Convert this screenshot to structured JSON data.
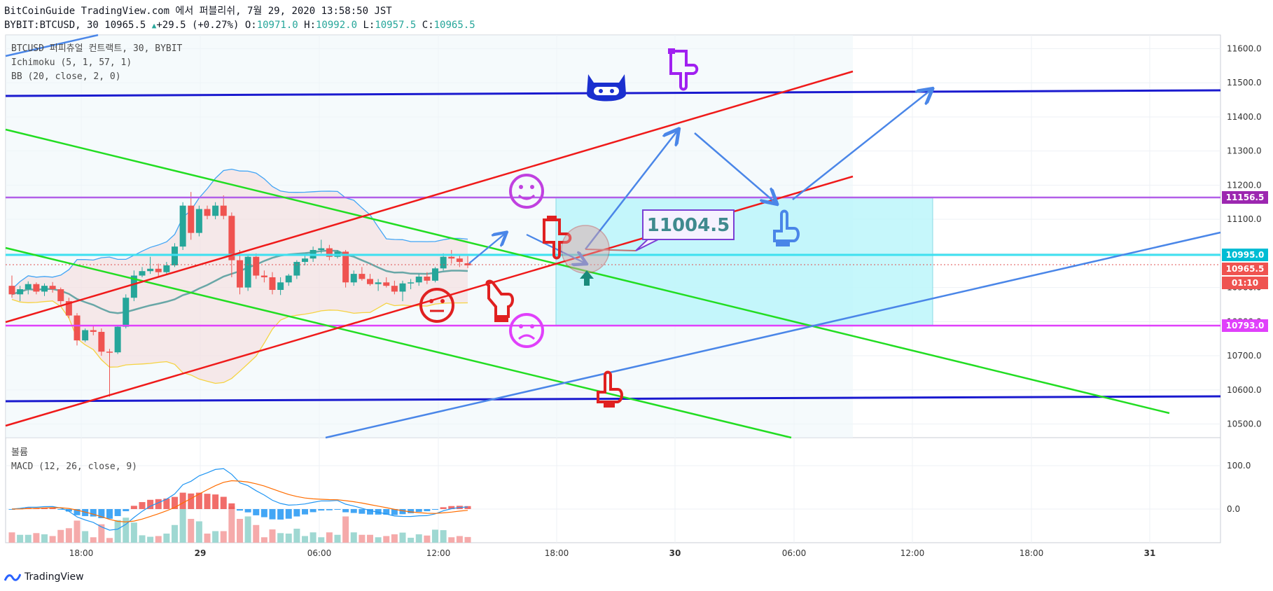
{
  "header": {
    "line1": "BitCoinGuide TradingView.com 에서 퍼블리쉬, 7월 29, 2020 13:58:50 JST",
    "symbol": "BYBIT:BTCUSD, 30",
    "last": "10965.5",
    "change": "+29.5 (+0.27%)",
    "o_label": "O:",
    "o": "10971.0",
    "h_label": "H:",
    "h": "10992.0",
    "l_label": "L:",
    "l": "10957.5",
    "c_label": "C:",
    "c": "10965.5"
  },
  "legend": {
    "line1": "BTCUSD 퍼피츄얼 컨트랙트, 30, BYBIT",
    "line2": "Ichimoku (5, 1, 57, 1)",
    "line3": "BB (20, close, 2, 0)"
  },
  "macd_legend": {
    "line1": "볼륨",
    "line2": "MACD (12, 26, close, 9)"
  },
  "footer": {
    "brand": "TradingView"
  },
  "annotation_box": "11004.5",
  "price_tags": [
    {
      "text": "11156.5",
      "color": "#9c27b0"
    },
    {
      "text": "10995.0",
      "color": "#00bcd4"
    },
    {
      "text": "10965.5",
      "color": "#ef5350"
    },
    {
      "text": "01:10",
      "color": "#ef5350"
    },
    {
      "text": "10793.0",
      "color": "#e040fb"
    }
  ],
  "colors": {
    "up": "#26a69a",
    "down": "#ef5350",
    "grid": "#eef1f5",
    "trend_red": "#ef1a1a",
    "trend_green": "#22dd22",
    "trend_blue": "#1a1acf",
    "trend_lightblue": "#4a86e8",
    "resistance": "#b25fe8",
    "support": "#e040fb",
    "cyan": "#3ee0f0"
  },
  "chart_data": {
    "type": "candlestick",
    "yaxis_ticks": [
      "11600.0",
      "11500.0",
      "11400.0",
      "11300.0",
      "11200.0",
      "11100.0",
      "11000.0",
      "10900.0",
      "10800.0",
      "10700.0",
      "10600.0",
      "10500.0"
    ],
    "ylim": [
      10460,
      11640
    ],
    "xaxis_ticks": [
      "18:00",
      "29",
      "06:00",
      "12:00",
      "18:00",
      "30",
      "06:00",
      "12:00",
      "18:00",
      "31"
    ],
    "candles": [
      [
        10905,
        10935,
        10870,
        10880
      ],
      [
        10880,
        10905,
        10860,
        10895
      ],
      [
        10895,
        10918,
        10880,
        10910
      ],
      [
        10910,
        10915,
        10880,
        10888
      ],
      [
        10888,
        10912,
        10875,
        10905
      ],
      [
        10905,
        10916,
        10885,
        10895
      ],
      [
        10895,
        10900,
        10850,
        10860
      ],
      [
        10860,
        10870,
        10810,
        10818
      ],
      [
        10818,
        10825,
        10730,
        10745
      ],
      [
        10745,
        10780,
        10740,
        10775
      ],
      [
        10775,
        10790,
        10760,
        10770
      ],
      [
        10770,
        10780,
        10700,
        10712
      ],
      [
        10712,
        10720,
        10580,
        10710
      ],
      [
        10710,
        10790,
        10705,
        10785
      ],
      [
        10785,
        10880,
        10780,
        10870
      ],
      [
        10870,
        10950,
        10860,
        10935
      ],
      [
        10935,
        10960,
        10930,
        10948
      ],
      [
        10948,
        10990,
        10940,
        10955
      ],
      [
        10955,
        10970,
        10930,
        10945
      ],
      [
        10945,
        10975,
        10940,
        10965
      ],
      [
        10965,
        11030,
        10960,
        11020
      ],
      [
        11020,
        11150,
        11010,
        11140
      ],
      [
        11140,
        11180,
        11040,
        11060
      ],
      [
        11060,
        11140,
        11050,
        11130
      ],
      [
        11130,
        11140,
        11100,
        11110
      ],
      [
        11110,
        11150,
        11100,
        11140
      ],
      [
        11140,
        11170,
        11100,
        11110
      ],
      [
        11110,
        11120,
        10930,
        10980
      ],
      [
        10980,
        11010,
        10880,
        10900
      ],
      [
        10900,
        10995,
        10890,
        10990
      ],
      [
        10990,
        11000,
        10925,
        10935
      ],
      [
        10935,
        10950,
        10915,
        10930
      ],
      [
        10930,
        10945,
        10880,
        10893
      ],
      [
        10893,
        10930,
        10878,
        10915
      ],
      [
        10915,
        10940,
        10905,
        10935
      ],
      [
        10935,
        10980,
        10925,
        10975
      ],
      [
        10975,
        10995,
        10965,
        10985
      ],
      [
        10985,
        11020,
        10975,
        11010
      ],
      [
        11010,
        11040,
        11000,
        11015
      ],
      [
        11015,
        11025,
        10980,
        10990
      ],
      [
        10990,
        11010,
        10985,
        11005
      ],
      [
        11005,
        11010,
        10900,
        10915
      ],
      [
        10915,
        10950,
        10905,
        10940
      ],
      [
        10940,
        10960,
        10920,
        10925
      ],
      [
        10925,
        10940,
        10905,
        10910
      ],
      [
        10910,
        10925,
        10890,
        10915
      ],
      [
        10915,
        10930,
        10900,
        10905
      ],
      [
        10905,
        10920,
        10880,
        10888
      ],
      [
        10888,
        10920,
        10860,
        10912
      ],
      [
        10912,
        10925,
        10895,
        10915
      ],
      [
        10915,
        10940,
        10905,
        10932
      ],
      [
        10932,
        10945,
        10910,
        10920
      ],
      [
        10920,
        10960,
        10915,
        10956
      ],
      [
        10956,
        11000,
        10950,
        10990
      ],
      [
        10990,
        11010,
        10970,
        10985
      ],
      [
        10985,
        10998,
        10960,
        10975
      ],
      [
        10971,
        10992,
        10957,
        10965
      ]
    ]
  }
}
